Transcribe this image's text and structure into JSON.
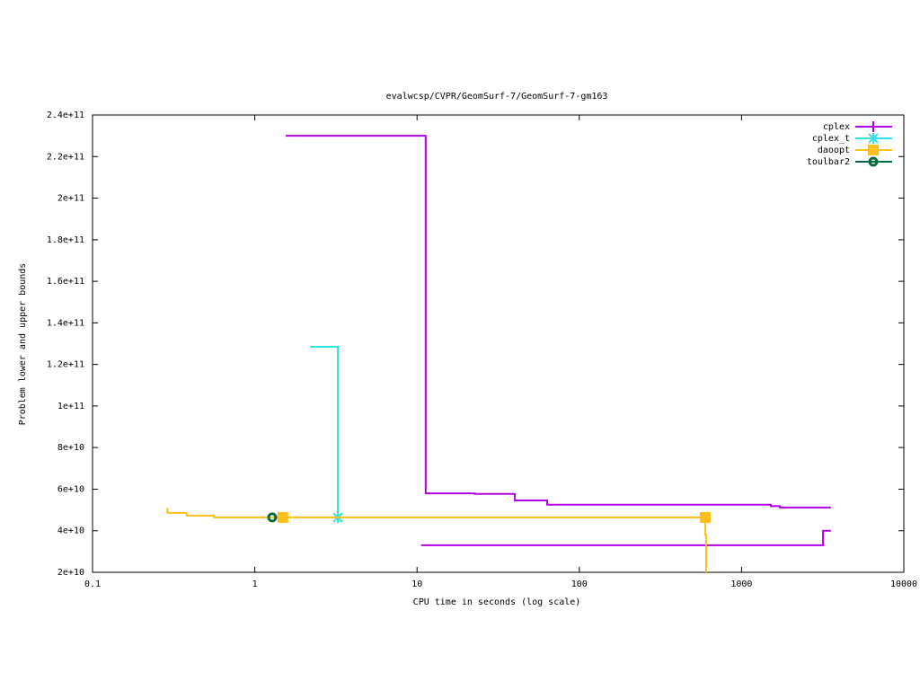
{
  "chart_data": {
    "type": "step",
    "title": "evalwcsp/CVPR/GeomSurf-7/GeomSurf-7-gm163",
    "x_label": "CPU time in seconds (log scale)",
    "y_label": "Problem lower and upper bounds",
    "xlog": true,
    "xlim": [
      0.1,
      10000
    ],
    "xticks": [
      0.1,
      1,
      10,
      100,
      1000,
      10000
    ],
    "ylim": [
      20000000000,
      240000000000
    ],
    "yticks": [
      {
        "value": 20000000000,
        "label": "2e+10"
      },
      {
        "value": 40000000000,
        "label": "4e+10"
      },
      {
        "value": 60000000000,
        "label": "6e+10"
      },
      {
        "value": 80000000000,
        "label": "8e+10"
      },
      {
        "value": 100000000000,
        "label": "1e+11"
      },
      {
        "value": 120000000000,
        "label": "1.2e+11"
      },
      {
        "value": 140000000000,
        "label": "1.4e+11"
      },
      {
        "value": 160000000000,
        "label": "1.6e+11"
      },
      {
        "value": 180000000000,
        "label": "1.8e+11"
      },
      {
        "value": 200000000000,
        "label": "2e+11"
      },
      {
        "value": 220000000000,
        "label": "2.2e+11"
      },
      {
        "value": 240000000000,
        "label": "2.4e+11"
      }
    ],
    "legend": "top-right",
    "series": [
      {
        "name": "cplex",
        "color": "#b300e6",
        "marker": "plus",
        "x": [
          1.55,
          11.3,
          22.6,
          40,
          63.4,
          1514,
          1722,
          3557,
          null,
          10.6,
          3177,
          3557
        ],
        "values": [
          230000000000,
          58000000000,
          57700000000,
          54600000000,
          52500000000,
          51800000000,
          51200000000,
          51200000000,
          null,
          33000000000,
          40000000000,
          40000000000
        ],
        "marker_x": [],
        "marker_values": []
      },
      {
        "name": "cplex_t",
        "color": "#33e0e6",
        "marker": "star",
        "x": [
          2.19,
          3.25
        ],
        "values": [
          128500000000,
          46400000000
        ],
        "marker_x": [
          3.25
        ],
        "marker_values": [
          46400000000
        ]
      },
      {
        "name": "daoopt",
        "color": "#ffbf1a",
        "marker": "square",
        "x": [
          0.29,
          0.29,
          0.38,
          0.56,
          597,
          605,
          610
        ],
        "values": [
          51000000000,
          48600000000,
          47300000000,
          46400000000,
          38000000000,
          10000000000,
          10000000000
        ],
        "marker_x": [
          1.49,
          597
        ],
        "marker_values": [
          46400000000,
          46400000000
        ]
      },
      {
        "name": "toulbar2",
        "color": "#006b3c",
        "marker": "circle",
        "x": [
          1.28
        ],
        "values": [
          46400000000
        ],
        "marker_x": [
          1.28
        ],
        "marker_values": [
          46400000000
        ]
      }
    ]
  }
}
